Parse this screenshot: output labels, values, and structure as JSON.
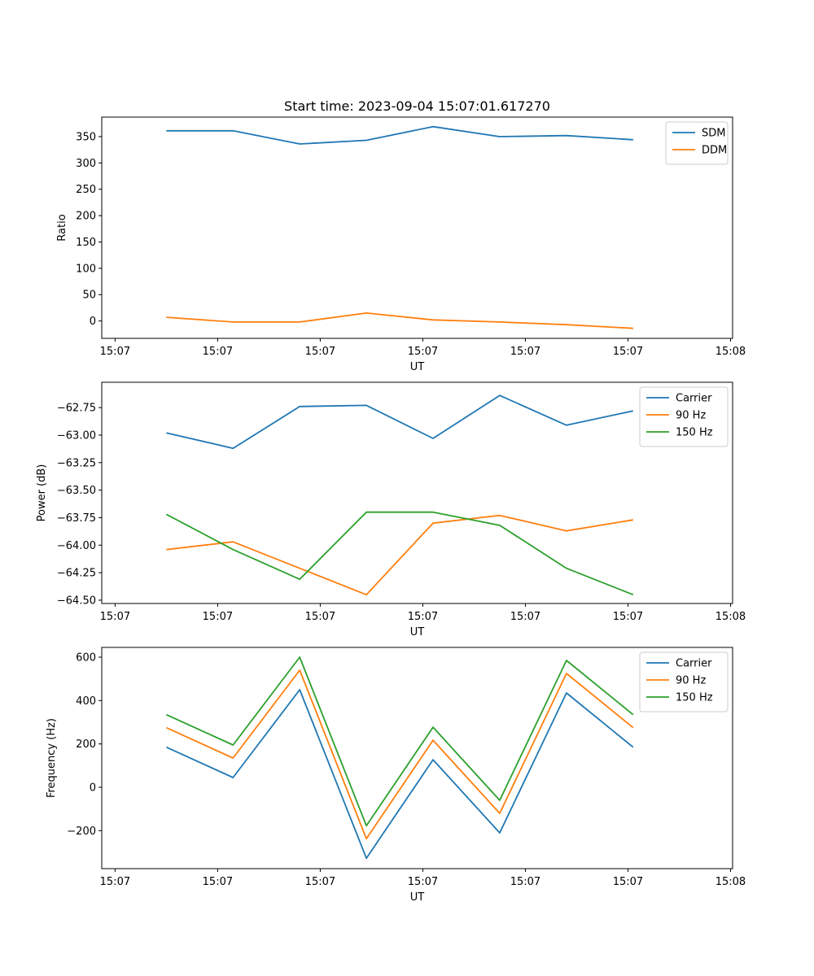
{
  "figure_title": "Start time: 2023-09-04 15:07:01.617270",
  "chart_data": [
    {
      "type": "line",
      "title": "Start time: 2023-09-04 15:07:01.617270",
      "xlabel": "UT",
      "ylabel": "Ratio",
      "x_tick_labels": [
        "15:07",
        "15:07",
        "15:07",
        "15:07",
        "15:07",
        "15:07",
        "15:08"
      ],
      "x_tick_values": [
        0,
        1,
        2,
        3,
        4,
        5,
        6
      ],
      "x": [
        0.5,
        1.15,
        1.8,
        2.45,
        3.1,
        3.75,
        4.4,
        5.05
      ],
      "xlim": [
        -0.13,
        6.02
      ],
      "ylim": [
        -33,
        387
      ],
      "y_ticks": [
        0,
        50,
        100,
        150,
        200,
        250,
        300,
        350
      ],
      "y_tick_labels": [
        "0",
        "50",
        "100",
        "150",
        "200",
        "250",
        "300",
        "350"
      ],
      "legend_position": "top-right",
      "series": [
        {
          "name": "SDM",
          "color": "#1f77b4",
          "values": [
            361,
            361,
            336,
            343,
            369,
            350,
            352,
            344
          ]
        },
        {
          "name": "DDM",
          "color": "#ff7f0e",
          "values": [
            7,
            -2,
            -2,
            15,
            2,
            -2,
            -7,
            -14
          ]
        }
      ]
    },
    {
      "type": "line",
      "title": "",
      "xlabel": "UT",
      "ylabel": "Power (dB)",
      "x_tick_labels": [
        "15:07",
        "15:07",
        "15:07",
        "15:07",
        "15:07",
        "15:07",
        "15:08"
      ],
      "x_tick_values": [
        0,
        1,
        2,
        3,
        4,
        5,
        6
      ],
      "x": [
        0.5,
        1.15,
        1.8,
        2.45,
        3.1,
        3.75,
        4.4,
        5.05
      ],
      "xlim": [
        -0.13,
        6.02
      ],
      "ylim": [
        -64.53,
        -62.52
      ],
      "y_ticks": [
        -64.5,
        -64.25,
        -64.0,
        -63.75,
        -63.5,
        -63.25,
        -63.0,
        -62.75
      ],
      "y_tick_labels": [
        "−64.50",
        "−64.25",
        "−64.00",
        "−63.75",
        "−63.50",
        "−63.25",
        "−63.00",
        "−62.75"
      ],
      "legend_position": "top-right",
      "series": [
        {
          "name": "Carrier",
          "color": "#1f77b4",
          "values": [
            -62.98,
            -63.12,
            -62.74,
            -62.73,
            -63.03,
            -62.64,
            -62.91,
            -62.78
          ]
        },
        {
          "name": "90 Hz",
          "color": "#ff7f0e",
          "values": [
            -64.04,
            -63.97,
            -64.21,
            -64.45,
            -63.8,
            -63.73,
            -63.87,
            -63.77
          ]
        },
        {
          "name": "150 Hz",
          "color": "#2ca02c",
          "values": [
            -63.72,
            -64.04,
            -64.31,
            -63.7,
            -63.7,
            -63.82,
            -64.21,
            -64.45
          ]
        }
      ]
    },
    {
      "type": "line",
      "title": "",
      "xlabel": "UT",
      "ylabel": "Frequency (Hz)",
      "x_tick_labels": [
        "15:07",
        "15:07",
        "15:07",
        "15:07",
        "15:07",
        "15:07",
        "15:08"
      ],
      "x_tick_values": [
        0,
        1,
        2,
        3,
        4,
        5,
        6
      ],
      "x": [
        0.5,
        1.15,
        1.8,
        2.45,
        3.1,
        3.75,
        4.4,
        5.05
      ],
      "xlim": [
        -0.13,
        6.02
      ],
      "ylim": [
        -375,
        645
      ],
      "y_ticks": [
        -200,
        0,
        200,
        400,
        600
      ],
      "y_tick_labels": [
        "−200",
        "0",
        "200",
        "400",
        "600"
      ],
      "legend_position": "top-right",
      "series": [
        {
          "name": "Carrier",
          "color": "#1f77b4",
          "values": [
            185,
            45,
            450,
            -327,
            127,
            -210,
            435,
            185
          ]
        },
        {
          "name": "90 Hz",
          "color": "#ff7f0e",
          "values": [
            275,
            135,
            540,
            -237,
            217,
            -120,
            525,
            275
          ]
        },
        {
          "name": "150 Hz",
          "color": "#2ca02c",
          "values": [
            335,
            195,
            600,
            -177,
            277,
            -60,
            585,
            335
          ]
        }
      ]
    }
  ]
}
